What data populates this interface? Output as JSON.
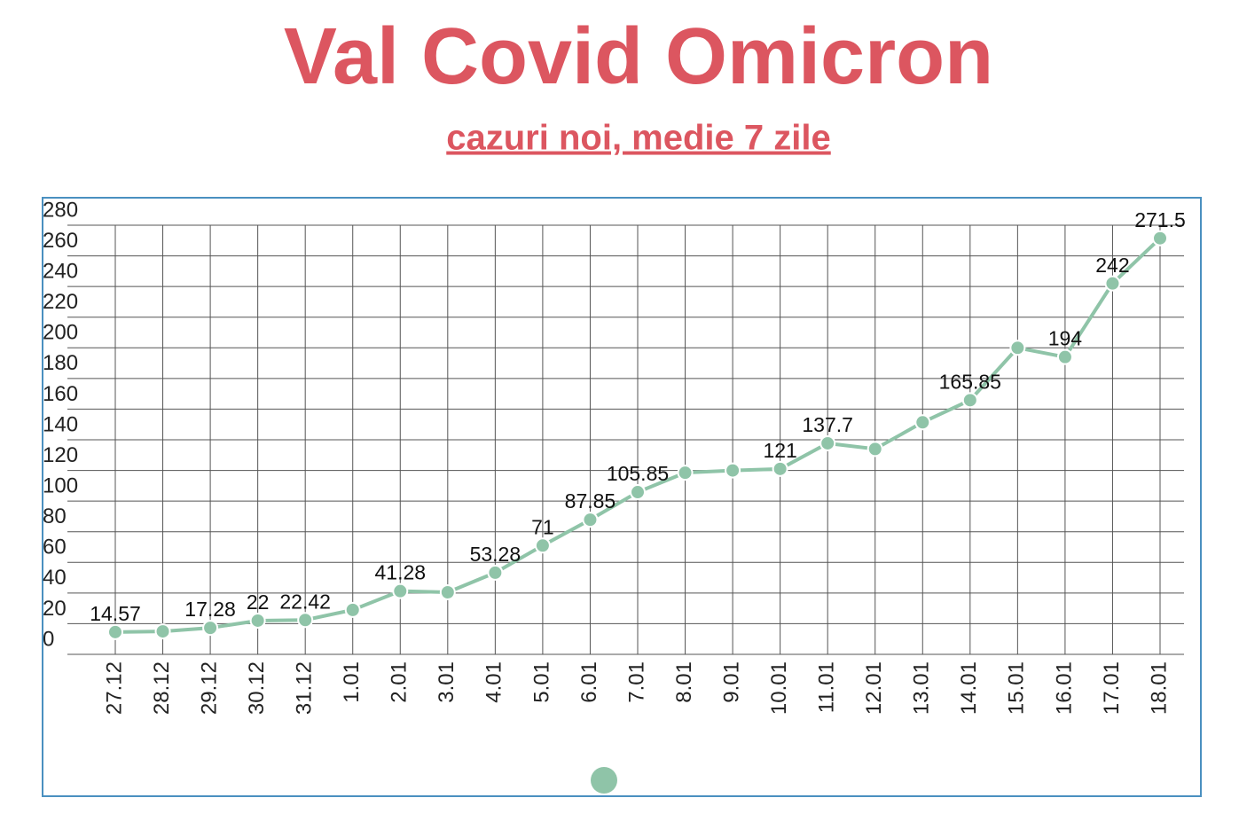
{
  "chart_data": {
    "type": "line",
    "title": "Val Covid Omicron",
    "subtitle": "cazuri noi, medie 7 zile",
    "categories": [
      "27.12",
      "28.12",
      "29.12",
      "30.12",
      "31.12",
      "1.01",
      "2.01",
      "3.01",
      "4.01",
      "5.01",
      "6.01",
      "7.01",
      "8.01",
      "9.01",
      "10.01",
      "11.01",
      "12.01",
      "13.01",
      "14.01",
      "15.01",
      "16.01",
      "17.01",
      "18.01"
    ],
    "series": [
      {
        "color": "#8fc4a8",
        "values": [
          14.57,
          15,
          17.28,
          22,
          22.42,
          29,
          41.28,
          40.5,
          53.28,
          71,
          87.85,
          105.85,
          118.5,
          120,
          121,
          137.7,
          134,
          151.4,
          165.85,
          200,
          194,
          242,
          271.5
        ],
        "value_labels": [
          "14.57",
          null,
          "17.28",
          "22",
          "22.42",
          null,
          "41.28",
          null,
          "53.28",
          "71",
          "87.85",
          "105.85",
          null,
          null,
          "121",
          "137.7",
          null,
          null,
          "165.85",
          null,
          "194",
          "242",
          "271.5"
        ]
      }
    ],
    "ylim": [
      0,
      280
    ],
    "yticks": [
      0,
      20,
      40,
      60,
      80,
      100,
      120,
      140,
      160,
      180,
      200,
      220,
      240,
      260,
      280
    ],
    "grid": true
  }
}
